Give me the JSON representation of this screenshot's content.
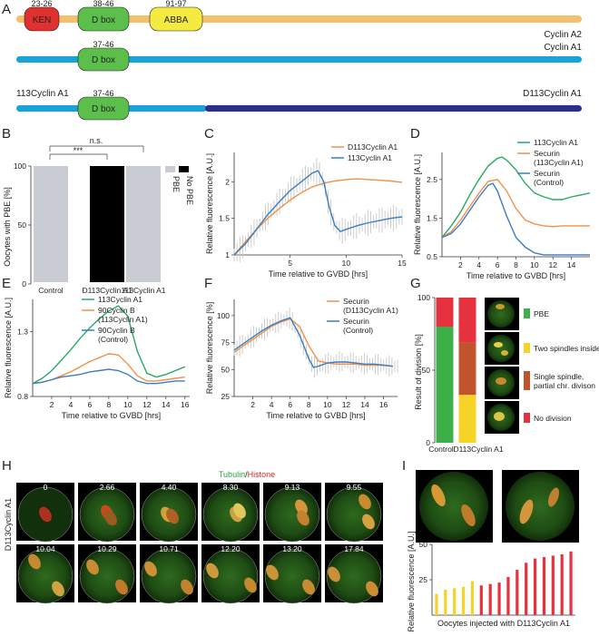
{
  "panelA": {
    "letter": "A",
    "rows": [
      {
        "name": "Cyclin A2",
        "color": "#f3c16e",
        "domains": [
          {
            "label": "KEN",
            "range": "23-26",
            "color": "#e03030"
          },
          {
            "label": "D box",
            "range": "38-46",
            "color": "#5cbf4c"
          },
          {
            "label": "ABBA",
            "range": "91-97",
            "color": "#f5ea3f"
          }
        ]
      },
      {
        "name": "Cyclin A1",
        "color": "#1aa3d9",
        "domains": [
          {
            "label": "D box",
            "range": "37-46",
            "color": "#5cbf4c"
          }
        ]
      },
      {
        "name_left": "113Cyclin A1",
        "name_right": "D113Cyclin A1",
        "color_left": "#1aa3d9",
        "color_right": "#2b2f8f",
        "domains": [
          {
            "label": "D box",
            "range": "37-46",
            "color": "#5cbf4c"
          }
        ]
      }
    ]
  },
  "panelB": {
    "letter": "B",
    "ylabel": "Oocytes with PBE [%]",
    "sig1": "***",
    "sig2": "n.s.",
    "legend": [
      "PBE",
      "No PBE"
    ]
  },
  "panelC": {
    "letter": "C"
  },
  "panelD": {
    "letter": "D"
  },
  "panelE": {
    "letter": "E"
  },
  "panelF": {
    "letter": "F"
  },
  "panelG": {
    "letter": "G",
    "ylabel": "Result of division [%]",
    "legend": [
      "PBE",
      "Two spindles inside",
      "Single spindle, partial chr. divison",
      "No division"
    ]
  },
  "panelH": {
    "letter": "H",
    "title_a": "Tubulin",
    "title_sep": "/",
    "title_b": "Histone",
    "row_label": "D113Cyclin A1",
    "times": [
      "0",
      "2.66",
      "4.40",
      "8.30",
      "9.13",
      "9.55",
      "10.04",
      "10.29",
      "10.71",
      "12.20",
      "13.20",
      "17.84"
    ]
  },
  "panelI": {
    "letter": "I"
  },
  "chart_data": [
    {
      "id": "B",
      "type": "bar",
      "categories": [
        "Control",
        "D113Cyclin A1",
        "113Cyclin A1"
      ],
      "values": [
        100,
        100,
        100
      ],
      "colors": [
        "#c9ccd3",
        "#000000",
        "#c9ccd3"
      ],
      "ylabel": "Oocytes with PBE [%]",
      "ylim": [
        0,
        100
      ],
      "yticks": [
        0,
        50,
        100
      ],
      "legend_position": "top-right"
    },
    {
      "id": "C",
      "type": "line",
      "xlabel": "Time relative to GVBD [hrs]",
      "ylabel": "Relative fluorescence [A.U.]",
      "xlim": [
        0,
        15
      ],
      "ylim": [
        1,
        2.4
      ],
      "xticks": [
        5,
        10,
        15
      ],
      "yticks": [
        1,
        1.5,
        2
      ],
      "legend_position": "top-right",
      "series": [
        {
          "name": "D113Cyclin A1",
          "color": "#f0914a",
          "x": [
            0,
            1,
            2,
            3,
            4,
            5,
            6,
            7,
            8,
            9,
            10,
            11,
            12,
            13,
            14,
            15
          ],
          "y": [
            1.0,
            1.18,
            1.35,
            1.5,
            1.63,
            1.75,
            1.85,
            1.93,
            1.98,
            2.01,
            2.03,
            2.04,
            2.03,
            2.02,
            2.01,
            1.99
          ]
        },
        {
          "name": "113Cyclin A1",
          "color": "#3a7fc1",
          "x": [
            0,
            1,
            2,
            3,
            4,
            5,
            6,
            7,
            7.5,
            8,
            8.5,
            9,
            9.5,
            10,
            11,
            12,
            13,
            14,
            15
          ],
          "y": [
            1.0,
            1.15,
            1.35,
            1.55,
            1.72,
            1.88,
            2.0,
            2.12,
            2.15,
            2.0,
            1.65,
            1.4,
            1.32,
            1.35,
            1.4,
            1.44,
            1.47,
            1.5,
            1.52
          ]
        }
      ]
    },
    {
      "id": "D",
      "type": "line",
      "xlabel": "Time relative to GVBD [hrs]",
      "ylabel": "Relative fluorescence [A.U.]",
      "xlim": [
        0,
        16
      ],
      "ylim": [
        0.5,
        3.2
      ],
      "xticks": [
        2,
        4,
        6,
        8,
        10,
        12,
        14
      ],
      "yticks": [
        0.5,
        1.5,
        2.5
      ],
      "legend_position": "top-right",
      "series": [
        {
          "name": "113Cyclin A1",
          "color": "#2aa866",
          "x": [
            0,
            1,
            2,
            3,
            4,
            5,
            6,
            6.5,
            7,
            8,
            9,
            10,
            11,
            12,
            13,
            14,
            15,
            16
          ],
          "y": [
            1.0,
            1.3,
            1.65,
            2.1,
            2.5,
            2.85,
            3.05,
            3.08,
            3.0,
            2.75,
            2.4,
            2.15,
            2.05,
            1.98,
            1.98,
            2.05,
            2.1,
            2.15
          ]
        },
        {
          "name": "Securin (113Cyclin A1)",
          "color": "#f0914a",
          "x": [
            0,
            1,
            2,
            3,
            4,
            5,
            6,
            7,
            8,
            9,
            10,
            11,
            12,
            13,
            14,
            15,
            16
          ],
          "y": [
            1.0,
            1.15,
            1.45,
            1.8,
            2.15,
            2.45,
            2.5,
            2.2,
            1.75,
            1.45,
            1.35,
            1.3,
            1.28,
            1.3,
            1.3,
            1.3,
            1.3
          ]
        },
        {
          "name": "Securin (Control)",
          "color": "#3a7fc1",
          "x": [
            0,
            1,
            2,
            3,
            4,
            5,
            5.5,
            6,
            7,
            8,
            9,
            10,
            11,
            12,
            13,
            14,
            15,
            16
          ],
          "y": [
            1.0,
            1.1,
            1.35,
            1.7,
            2.05,
            2.35,
            2.4,
            2.2,
            1.55,
            1.0,
            0.75,
            0.6,
            0.55,
            0.55,
            0.55,
            0.55,
            0.55,
            0.55
          ]
        }
      ]
    },
    {
      "id": "E",
      "type": "line",
      "xlabel": "Time relative to GVBD [hrs]",
      "ylabel": "Relative fluorescence [A.U.]",
      "xlim": [
        0,
        16.5
      ],
      "ylim": [
        0.8,
        1.55
      ],
      "xticks": [
        2,
        4,
        6,
        8,
        10,
        12,
        14,
        16
      ],
      "yticks": [
        0.8,
        1.3
      ],
      "legend_position": "top-left",
      "series": [
        {
          "name": "113Cyclin A1",
          "color": "#2aa866",
          "x": [
            0,
            1,
            2,
            3,
            4,
            5,
            6,
            7,
            8,
            9,
            10,
            11,
            12,
            13,
            14,
            15,
            16
          ],
          "y": [
            0.9,
            0.94,
            1.0,
            1.08,
            1.16,
            1.25,
            1.33,
            1.4,
            1.46,
            1.5,
            1.42,
            1.15,
            0.98,
            0.95,
            0.97,
            1.0,
            1.03
          ]
        },
        {
          "name": "90Cyclin B (113Cyclin A1)",
          "color": "#f0914a",
          "x": [
            0,
            1,
            2,
            3,
            4,
            5,
            6,
            7,
            8,
            9,
            10,
            11,
            12,
            13,
            14,
            15,
            16
          ],
          "y": [
            0.9,
            0.91,
            0.93,
            0.96,
            0.99,
            1.03,
            1.07,
            1.1,
            1.13,
            1.12,
            1.05,
            0.96,
            0.92,
            0.92,
            0.93,
            0.94,
            0.95
          ]
        },
        {
          "name": "90Cyclin B (Control)",
          "color": "#3a7fc1",
          "x": [
            0,
            1,
            2,
            3,
            4,
            5,
            6,
            7,
            8,
            9,
            10,
            11,
            12,
            13,
            14,
            15,
            16
          ],
          "y": [
            0.9,
            0.91,
            0.93,
            0.95,
            0.96,
            0.97,
            0.99,
            1.0,
            1.01,
            1.0,
            0.97,
            0.92,
            0.9,
            0.9,
            0.91,
            0.92,
            0.92
          ]
        }
      ]
    },
    {
      "id": "F",
      "type": "line",
      "xlabel": "Time relative to GVBD [hrs]",
      "ylabel": "Relative fluorescence [%]",
      "xlim": [
        0,
        17.5
      ],
      "ylim": [
        25,
        115
      ],
      "xticks": [
        2,
        4,
        6,
        8,
        10,
        12,
        14,
        16
      ],
      "yticks": [
        25,
        50,
        75,
        100
      ],
      "legend_position": "top-right",
      "series": [
        {
          "name": "Securin (D113Cyclin A1)",
          "color": "#f0914a",
          "x": [
            0,
            1,
            2,
            3,
            4,
            5,
            6,
            7,
            8,
            9,
            10,
            11,
            12,
            13,
            14,
            15,
            16,
            17
          ],
          "y": [
            66,
            72,
            78,
            84,
            90,
            94,
            97,
            90,
            72,
            58,
            56,
            55,
            55,
            55,
            54,
            54,
            54,
            53
          ]
        },
        {
          "name": "Securin (Control)",
          "color": "#3a7fc1",
          "x": [
            0,
            1,
            2,
            3,
            4,
            5,
            6,
            7,
            8,
            8.5,
            9,
            10,
            11,
            12,
            13,
            14,
            15,
            16,
            17
          ],
          "y": [
            68,
            74,
            80,
            86,
            91,
            95,
            98,
            82,
            60,
            52,
            53,
            56,
            57,
            57,
            56,
            55,
            55,
            54,
            53
          ]
        }
      ]
    },
    {
      "id": "G",
      "type": "bar",
      "categories": [
        "Control",
        "D113Cyclin A1"
      ],
      "ylabel": "Result of division [%]",
      "ylim": [
        0,
        100
      ],
      "yticks": [
        0,
        50,
        100
      ],
      "series": [
        {
          "name": "PBE",
          "color": "#3eb049",
          "values": [
            80,
            0
          ]
        },
        {
          "name": "Two spindles inside",
          "color": "#f5d327",
          "values": [
            0,
            33
          ]
        },
        {
          "name": "Single spindle, partial chr. divison",
          "color": "#c0542d",
          "values": [
            0,
            36
          ]
        },
        {
          "name": "No division",
          "color": "#e6323e",
          "values": [
            20,
            31
          ]
        }
      ]
    },
    {
      "id": "I",
      "type": "bar",
      "xlabel": "Oocytes injected with D113Cyclin A1",
      "ylabel": "Relative fluorescence [A.U.]",
      "ylim": [
        0,
        50
      ],
      "yticks": [
        25,
        50
      ],
      "values": [
        15,
        18,
        19,
        20,
        24,
        21,
        22,
        23,
        27,
        32,
        37,
        40,
        41,
        42,
        43,
        45
      ],
      "colors": [
        "#f5d327",
        "#f5d327",
        "#f5d327",
        "#f5d327",
        "#f5d327",
        "#e6323e",
        "#e6323e",
        "#e6323e",
        "#e6323e",
        "#e6323e",
        "#e6323e",
        "#e6323e",
        "#e6323e",
        "#e6323e",
        "#e6323e",
        "#e6323e"
      ]
    }
  ]
}
